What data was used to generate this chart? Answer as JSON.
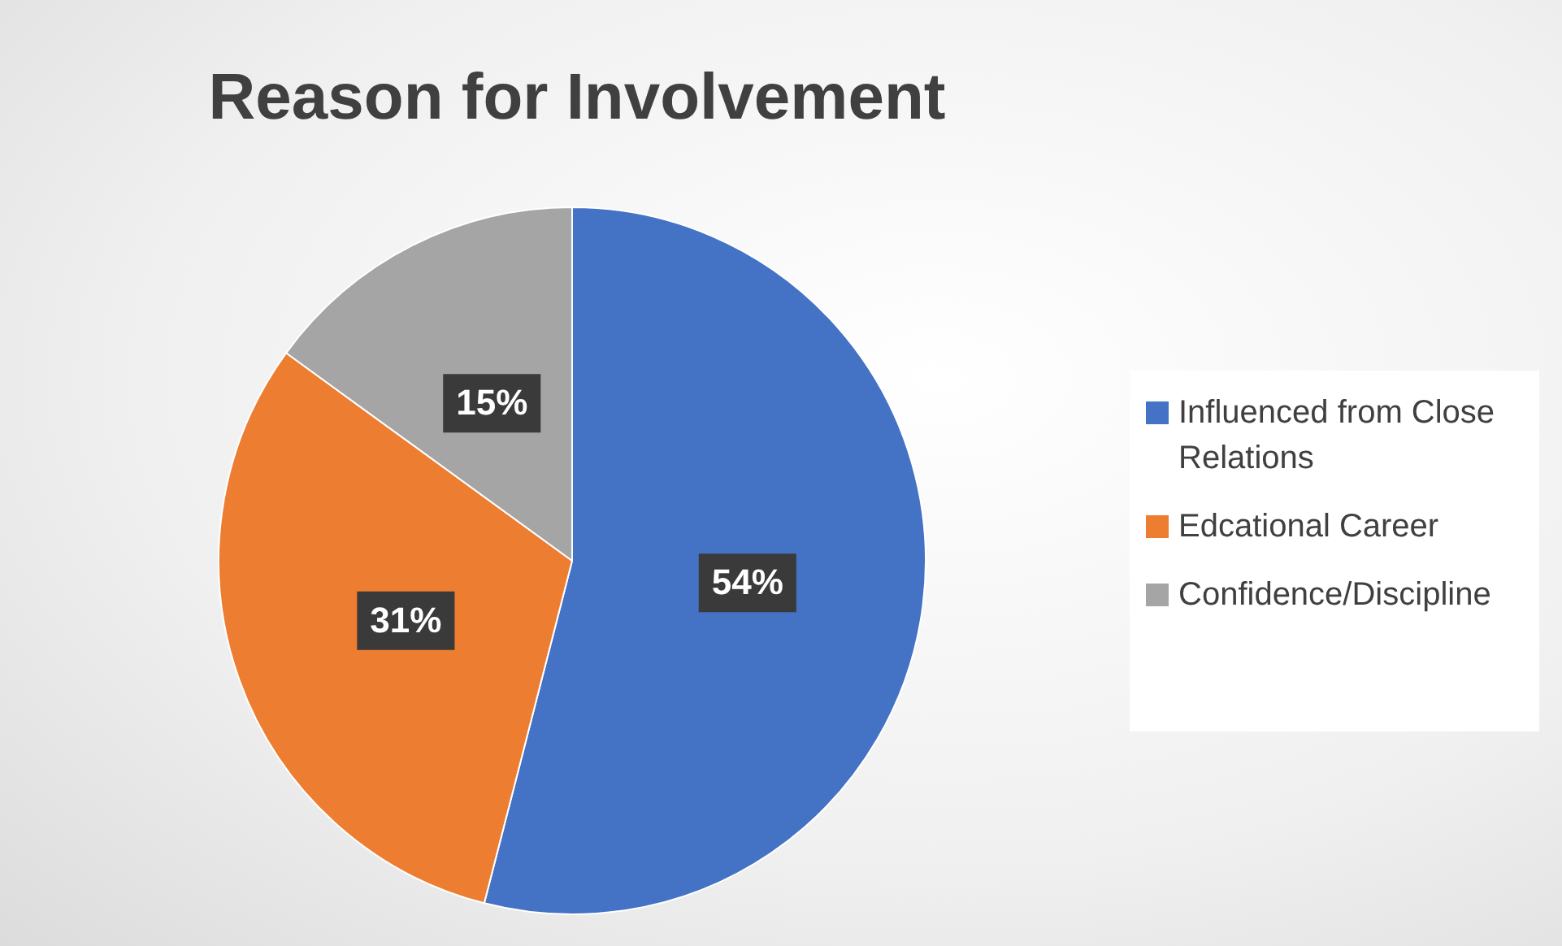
{
  "chart_data": {
    "type": "pie",
    "title": "Reason for Involvement",
    "categories": [
      "Influenced from Close Relations",
      "Edcational Career",
      "Confidence/Discipline"
    ],
    "values": [
      54,
      31,
      15
    ],
    "colors": [
      "#4472c4",
      "#ed7d31",
      "#a5a5a5"
    ],
    "value_labels": [
      "54%",
      "31%",
      "15%"
    ],
    "legend": "right"
  }
}
